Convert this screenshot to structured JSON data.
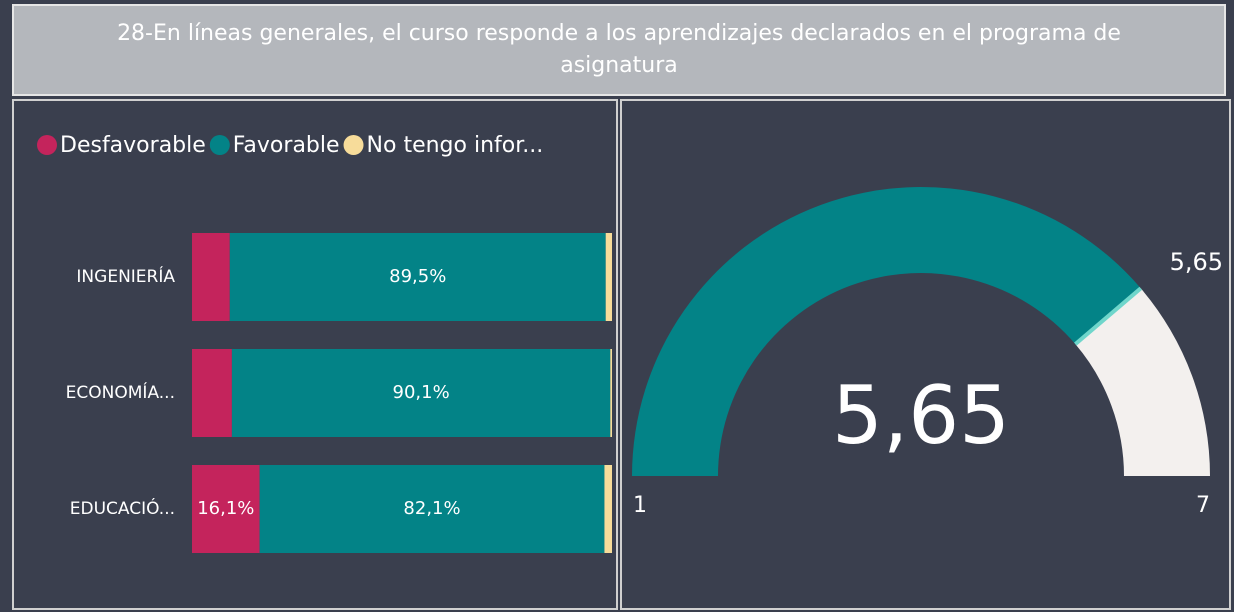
{
  "chart_data": [
    {
      "type": "stacked_bar_horizontal",
      "title": "28-En líneas generales, el curso responde a los aprendizajes declarados en el programa de asignatura",
      "categories": [
        "INGENIERÍA",
        "ECONOMÍA...",
        "EDUCACIÓ..."
      ],
      "xlim": [
        0,
        100
      ],
      "legend": "top-left",
      "series": [
        {
          "name": "Desfavorable",
          "color": "#c4245c",
          "values": [
            9.0,
            9.5,
            16.1
          ],
          "value_labels": [
            null,
            null,
            "16,1%"
          ]
        },
        {
          "name": "Favorable",
          "color": "#038387",
          "values": [
            89.5,
            90.1,
            82.1
          ],
          "value_labels": [
            "89,5%",
            "90,1%",
            "82,1%"
          ]
        },
        {
          "name": "No tengo infor...",
          "color": "#f7dc9a",
          "values": [
            1.5,
            0.4,
            1.8
          ],
          "value_labels": [
            null,
            null,
            null
          ]
        }
      ]
    },
    {
      "type": "gauge",
      "value": 5.65,
      "value_label": "5,65",
      "min": 1,
      "max": 7,
      "target": 5.65,
      "target_label": "5,65",
      "color": "#038387",
      "rest_color": "#f3f0ee",
      "target_color": "#6fd6cb"
    }
  ]
}
